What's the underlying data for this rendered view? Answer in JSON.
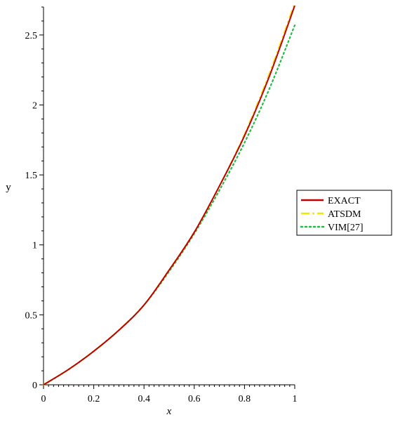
{
  "chart_data": {
    "type": "line",
    "title": "",
    "xlabel": "x",
    "ylabel": "y",
    "xlim": [
      0,
      1
    ],
    "ylim": [
      0,
      2.7
    ],
    "x_ticks": [
      "0",
      "0.2",
      "0.4",
      "0.6",
      "0.8",
      "1"
    ],
    "x_tick_values": [
      0,
      0.2,
      0.4,
      0.6,
      0.8,
      1
    ],
    "y_ticks": [
      "0",
      "0.5",
      "1",
      "1.5",
      "2",
      "2.5"
    ],
    "y_tick_values": [
      0,
      0.5,
      1,
      1.5,
      2,
      2.5
    ],
    "grid": false,
    "legend_position": "right",
    "x": [
      0,
      0.1,
      0.2,
      0.3,
      0.4,
      0.5,
      0.6,
      0.7,
      0.8,
      0.9,
      1.0
    ],
    "series": [
      {
        "name": "EXACT",
        "color": "#c00000",
        "style": "solid",
        "values": [
          0,
          0.11,
          0.24,
          0.39,
          0.57,
          0.82,
          1.09,
          1.42,
          1.78,
          2.21,
          2.71
        ]
      },
      {
        "name": "ATSDM",
        "color": "#f5e600",
        "style": "dashdot",
        "values": [
          0,
          0.11,
          0.24,
          0.39,
          0.57,
          0.82,
          1.09,
          1.42,
          1.79,
          2.23,
          2.73
        ]
      },
      {
        "name": "VIM[27]",
        "color": "#22bb44",
        "style": "dotted",
        "values": [
          0,
          0.11,
          0.24,
          0.39,
          0.57,
          0.81,
          1.08,
          1.39,
          1.73,
          2.12,
          2.57
        ]
      }
    ]
  }
}
